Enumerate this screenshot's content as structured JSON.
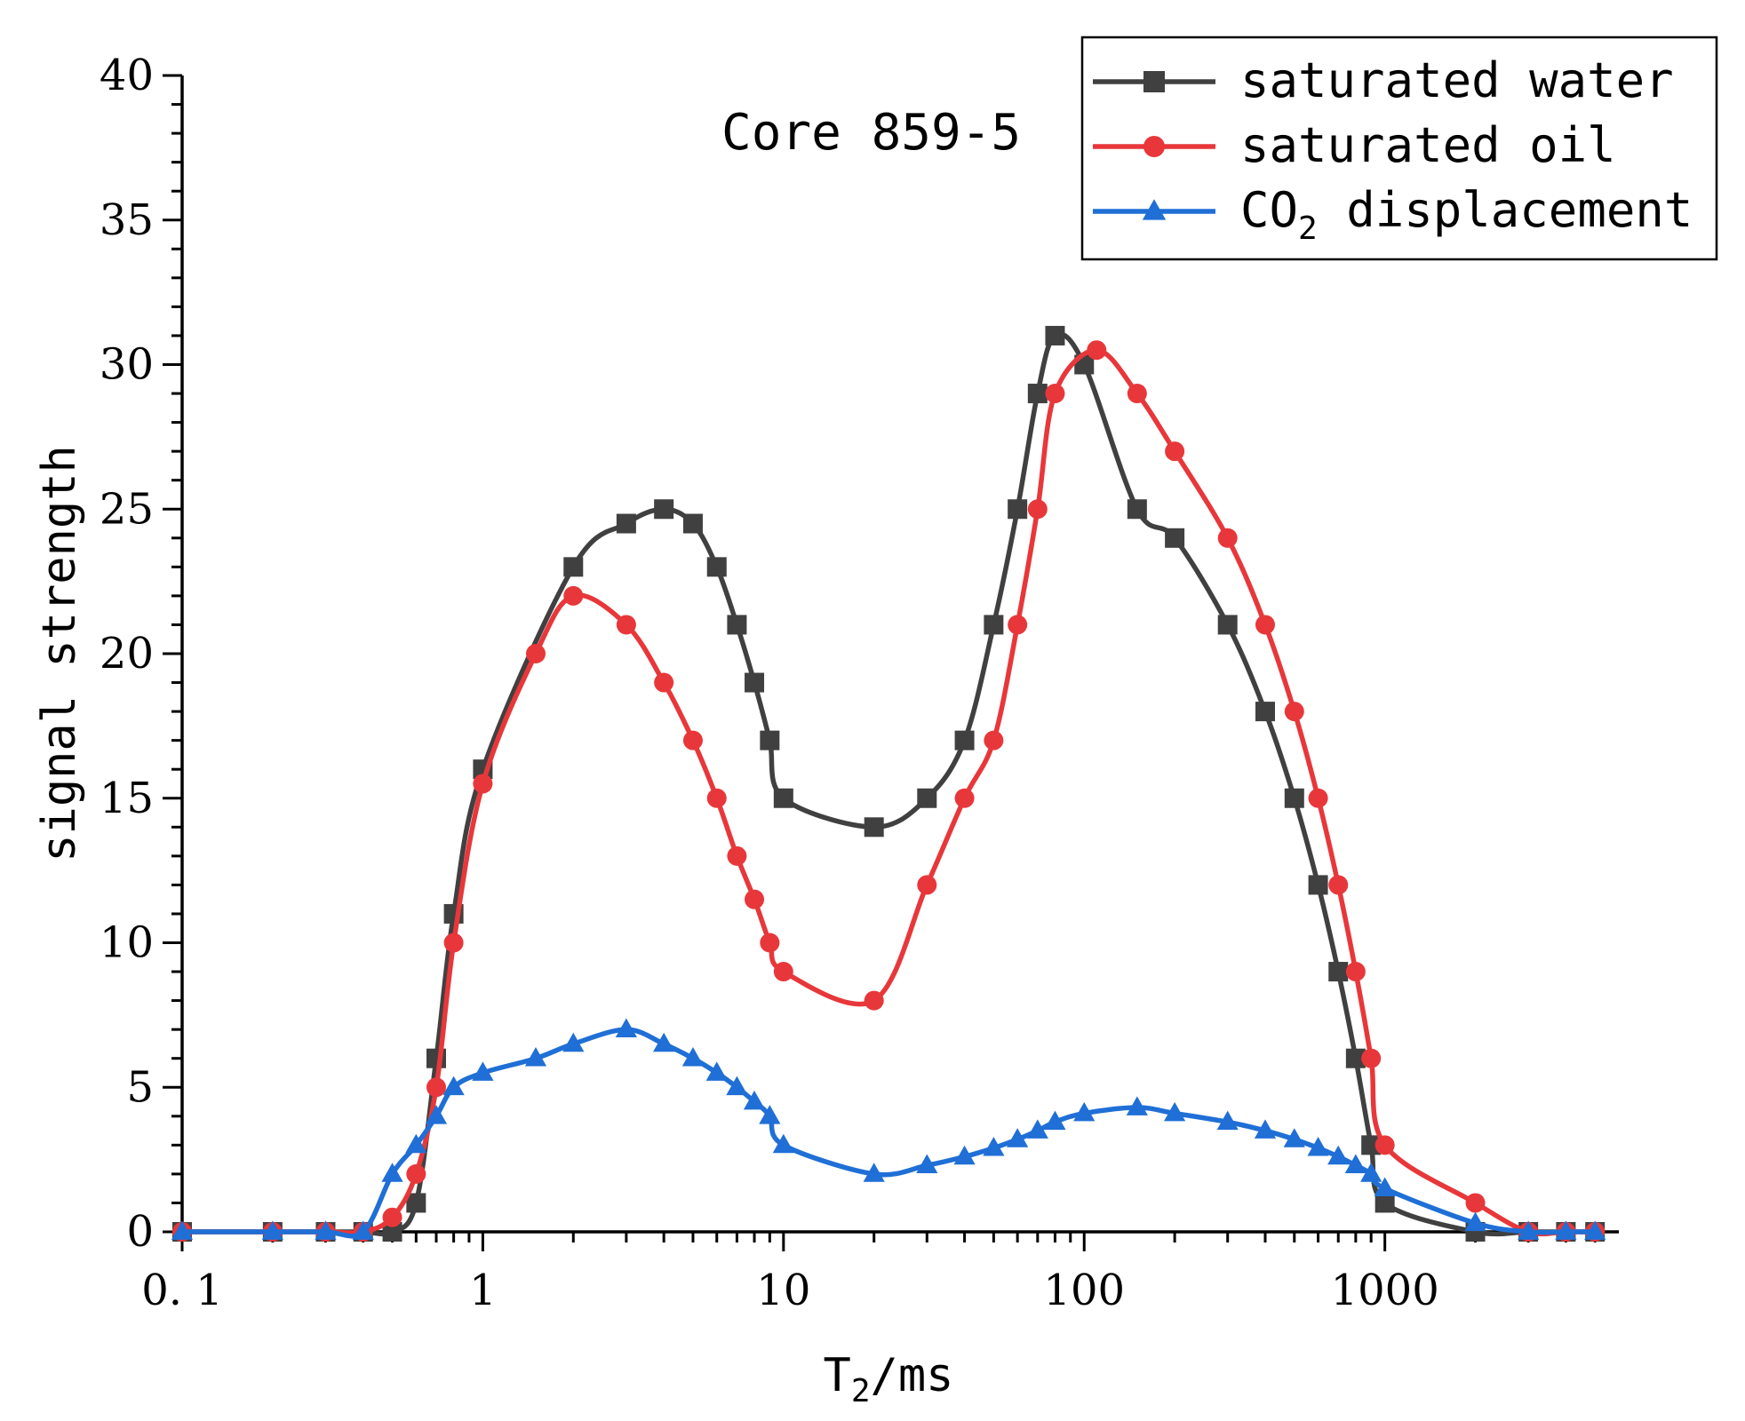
{
  "chart_data": {
    "type": "line",
    "title": "",
    "annotation": "Core 859-5",
    "xlabel": {
      "main": "T",
      "sub": "2",
      "rest": "/ms"
    },
    "ylabel": "signal strength",
    "xscale": "log",
    "xlim": [
      0.1,
      6000
    ],
    "ylim": [
      0,
      40
    ],
    "xticks": [
      0.1,
      1,
      10,
      100,
      1000
    ],
    "xtick_labels": [
      "0. 1",
      "1",
      "10",
      "100",
      "1000"
    ],
    "yticks": [
      0,
      5,
      10,
      15,
      20,
      25,
      30,
      35,
      40
    ],
    "ytick_labels": [
      "0",
      "5",
      "10",
      "15",
      "20",
      "25",
      "30",
      "35",
      "40"
    ],
    "grid": false,
    "legend_position": "top-right",
    "series": [
      {
        "name": "saturated water",
        "legend": {
          "main": "saturated water",
          "sub": "",
          "rest": ""
        },
        "color": "#404040",
        "marker": "square",
        "x": [
          0.1,
          0.2,
          0.3,
          0.4,
          0.5,
          0.6,
          0.7,
          0.8,
          1,
          2,
          3,
          4,
          5,
          6,
          7,
          8,
          9,
          10,
          20,
          30,
          40,
          50,
          60,
          70,
          80,
          100,
          150,
          200,
          300,
          400,
          500,
          600,
          700,
          800,
          900,
          1000,
          2000,
          3000,
          4000,
          5000
        ],
        "y": [
          0,
          0,
          0,
          0,
          0,
          1,
          6,
          11,
          16,
          23,
          24.5,
          25,
          24.5,
          23,
          21,
          19,
          17,
          15,
          14,
          15,
          17,
          21,
          25,
          29,
          31,
          30,
          25,
          24,
          21,
          18,
          15,
          12,
          9,
          6,
          3,
          1,
          0,
          0,
          0,
          0
        ]
      },
      {
        "name": "saturated oil",
        "legend": {
          "main": "saturated oil",
          "sub": "",
          "rest": ""
        },
        "color": "#e8373a",
        "marker": "circle",
        "x": [
          0.1,
          0.2,
          0.3,
          0.4,
          0.5,
          0.6,
          0.7,
          0.8,
          1,
          1.5,
          2,
          3,
          4,
          5,
          6,
          7,
          8,
          9,
          10,
          20,
          30,
          40,
          50,
          60,
          70,
          80,
          110,
          150,
          200,
          300,
          400,
          500,
          600,
          700,
          800,
          900,
          1000,
          2000,
          3000,
          4000,
          5000
        ],
        "y": [
          0,
          0,
          0,
          0,
          0.5,
          2,
          5,
          10,
          15.5,
          20,
          22,
          21,
          19,
          17,
          15,
          13,
          11.5,
          10,
          9,
          8,
          12,
          15,
          17,
          21,
          25,
          29,
          30.5,
          29,
          27,
          24,
          21,
          18,
          15,
          12,
          9,
          6,
          3,
          1,
          0,
          0,
          0
        ]
      },
      {
        "name": "CO2 displacement",
        "legend": {
          "main": "CO",
          "sub": "2",
          "rest": " displacement"
        },
        "color": "#1f6fd6",
        "marker": "triangle",
        "x": [
          0.1,
          0.2,
          0.3,
          0.4,
          0.5,
          0.6,
          0.7,
          0.8,
          1,
          1.5,
          2,
          3,
          4,
          5,
          6,
          7,
          8,
          9,
          10,
          20,
          30,
          40,
          50,
          60,
          70,
          80,
          100,
          150,
          200,
          300,
          400,
          500,
          600,
          700,
          800,
          900,
          1000,
          2000,
          3000,
          4000,
          5000
        ],
        "y": [
          0,
          0,
          0,
          0,
          2,
          3,
          4,
          5,
          5.5,
          6,
          6.5,
          7,
          6.5,
          6,
          5.5,
          5,
          4.5,
          4,
          3,
          2,
          2.3,
          2.6,
          2.9,
          3.2,
          3.5,
          3.8,
          4.1,
          4.3,
          4.1,
          3.8,
          3.5,
          3.2,
          2.9,
          2.6,
          2.3,
          2,
          1.5,
          0.3,
          0,
          0,
          0
        ]
      }
    ]
  }
}
